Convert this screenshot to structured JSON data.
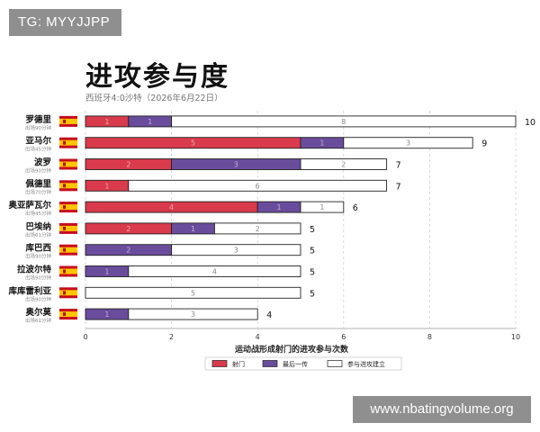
{
  "watermark_top": "TG: MYYJJPP",
  "watermark_bottom": "www.nbatingvolume.org",
  "chart_data": {
    "type": "bar",
    "orientation": "horizontal",
    "stacked": true,
    "title": "进攻参与度",
    "subtitle": "西班牙4:0沙特（2026年6月22日）",
    "xlabel": "运动战形成射门的进攻参与次数",
    "xlim": [
      0,
      10
    ],
    "xticks": [
      0,
      2,
      4,
      6,
      8,
      10
    ],
    "grid": "vertical dashed",
    "legend_placement": "bottom-center",
    "colors": {
      "射门": "#d93a4c",
      "最后一传": "#6a4c9c",
      "参与进攻建立": "#ffffff"
    },
    "categories": [
      {
        "name": "罗德里",
        "minutes": "出场90分钟"
      },
      {
        "name": "亚马尔",
        "minutes": "出场45分钟"
      },
      {
        "name": "波罗",
        "minutes": "出场90分钟"
      },
      {
        "name": "佩德里",
        "minutes": "出场70分钟"
      },
      {
        "name": "奥亚萨瓦尔",
        "minutes": "出场45分钟"
      },
      {
        "name": "巴埃纳",
        "minutes": "出场61分钟"
      },
      {
        "name": "库巴西",
        "minutes": "出场90分钟"
      },
      {
        "name": "拉波尔特",
        "minutes": "出场90分钟"
      },
      {
        "name": "库库雷利亚",
        "minutes": "出场90分钟"
      },
      {
        "name": "奥尔莫",
        "minutes": "出场61分钟"
      }
    ],
    "series": [
      {
        "name": "射门",
        "values": [
          1,
          5,
          2,
          1,
          4,
          2,
          0,
          0,
          0,
          0
        ]
      },
      {
        "name": "最后一传",
        "values": [
          1,
          1,
          3,
          0,
          1,
          1,
          2,
          1,
          0,
          1
        ]
      },
      {
        "name": "参与进攻建立",
        "values": [
          8,
          3,
          2,
          6,
          1,
          2,
          3,
          4,
          5,
          3
        ]
      }
    ],
    "totals": [
      10,
      9,
      7,
      7,
      6,
      5,
      5,
      5,
      5,
      4
    ]
  }
}
